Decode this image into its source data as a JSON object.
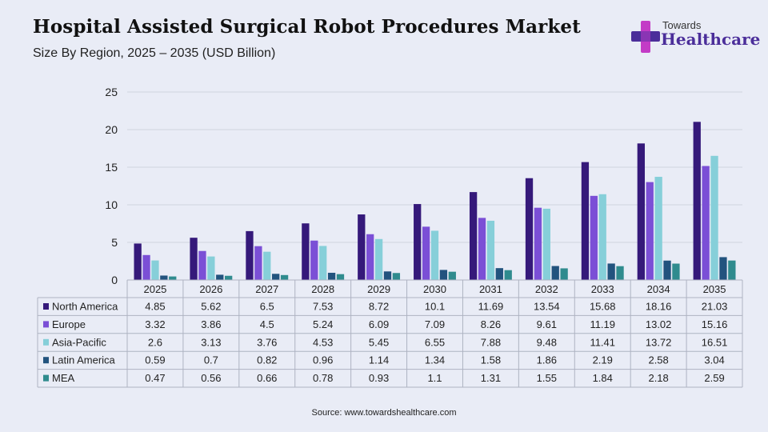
{
  "header": {
    "title": "Hospital Assisted Surgical Robot Procedures Market",
    "subtitle": "Size By Region, 2025 – 2035 (USD Billion)"
  },
  "logo": {
    "top_text": "Towards",
    "main_text": "Healthcare",
    "icon": "cross-plus-icon",
    "colors": [
      "#c33bc6",
      "#4b2e9a"
    ]
  },
  "source": "Source: www.towardshealthcare.com",
  "chart_data": {
    "type": "bar",
    "title": "Hospital Assisted Surgical Robot Procedures Market",
    "subtitle": "Size By Region, 2025 – 2035 (USD Billion)",
    "categories": [
      "2025",
      "2026",
      "2027",
      "2028",
      "2029",
      "2030",
      "2031",
      "2032",
      "2033",
      "2034",
      "2035"
    ],
    "ylim": [
      0,
      25
    ],
    "yticks": [
      0,
      5,
      10,
      15,
      20,
      25
    ],
    "grid": true,
    "legend": "data-table-left",
    "series": [
      {
        "name": "North America",
        "color": "#35197a",
        "values": [
          4.85,
          5.62,
          6.5,
          7.53,
          8.72,
          10.1,
          11.69,
          13.54,
          15.68,
          18.16,
          21.03
        ]
      },
      {
        "name": "Europe",
        "color": "#7b4fd6",
        "values": [
          3.32,
          3.86,
          4.5,
          5.24,
          6.09,
          7.09,
          8.26,
          9.61,
          11.19,
          13.02,
          15.16
        ]
      },
      {
        "name": "Asia-Pacific",
        "color": "#86cfd9",
        "values": [
          2.6,
          3.13,
          3.76,
          4.53,
          5.45,
          6.55,
          7.88,
          9.48,
          11.41,
          13.72,
          16.51
        ]
      },
      {
        "name": "Latin America",
        "color": "#22537e",
        "values": [
          0.59,
          0.7,
          0.82,
          0.96,
          1.14,
          1.34,
          1.58,
          1.86,
          2.19,
          2.58,
          3.04
        ]
      },
      {
        "name": "MEA",
        "color": "#2f8b8e",
        "values": [
          0.47,
          0.56,
          0.66,
          0.78,
          0.93,
          1.1,
          1.31,
          1.55,
          1.84,
          2.18,
          2.59
        ]
      }
    ]
  }
}
